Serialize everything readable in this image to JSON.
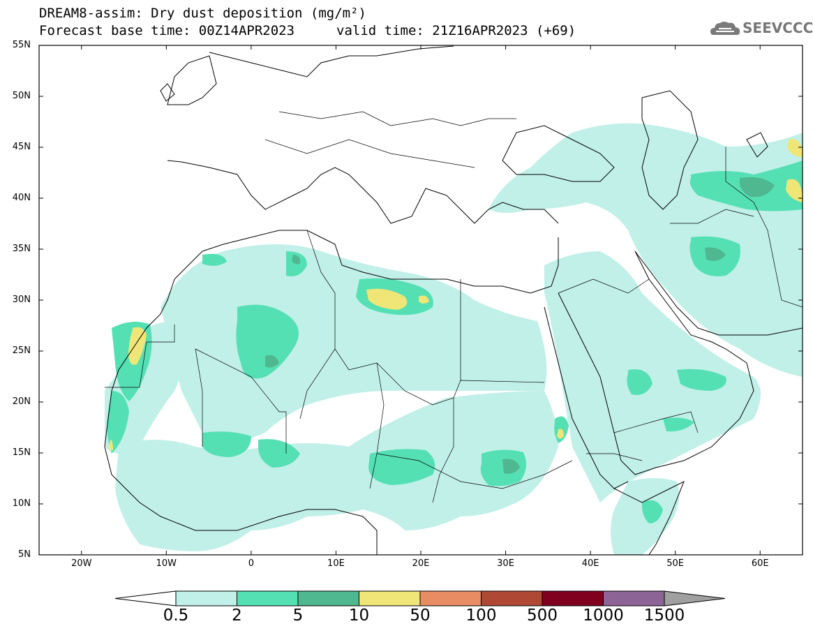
{
  "header": {
    "title_line1": "DREAM8-assim: Dry dust deposition (mg/m²)",
    "title_line2": "Forecast base time: 00Z14APR2023",
    "valid_time": "valid time: 21Z16APR2023 (+69)",
    "logo_text": "SEEVCCC",
    "logo_icon": "cloud-icon"
  },
  "map": {
    "lon_range": [
      -25,
      65
    ],
    "lat_range": [
      5,
      55
    ],
    "lat_labels": [
      "55N",
      "50N",
      "45N",
      "40N",
      "35N",
      "30N",
      "25N",
      "20N",
      "15N",
      "10N",
      "5N"
    ],
    "lon_labels": [
      "20W",
      "10W",
      "0",
      "10E",
      "20E",
      "30E",
      "40E",
      "50E",
      "60E"
    ]
  },
  "legend": {
    "levels": [
      "0.5",
      "2",
      "5",
      "10",
      "50",
      "100",
      "500",
      "1000",
      "1500"
    ],
    "colors": [
      "#c1f0e8",
      "#55e0b4",
      "#50b890",
      "#f0e678",
      "#e88c64",
      "#b04836",
      "#800020",
      "#8c6496",
      "#a0a0a0"
    ],
    "under_color": "#ffffff"
  }
}
